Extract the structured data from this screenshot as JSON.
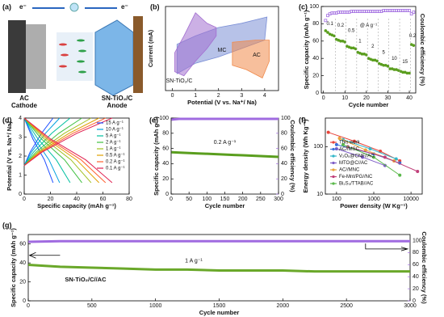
{
  "schematic": {
    "label": "(a)",
    "electron_left": "e⁻",
    "electron_right": "e⁻",
    "cathode_name": "AC",
    "cathode_role": "Cathode",
    "anode_name": "SN-TiO₂/C",
    "anode_role": "Anode"
  },
  "chart_data": [
    {
      "label": "(b)",
      "type": "area",
      "xlabel": "Potential (V vs. Na⁺/ Na)",
      "ylabel": "Current (mA)",
      "xlim": [
        -0.3,
        4.6
      ],
      "ylim": [
        -1,
        1
      ],
      "xticks": [
        0,
        1,
        2,
        3,
        4
      ],
      "series": [
        {
          "name": "MC",
          "color": "#7b8fd6",
          "x": [
            0.2,
            1,
            2,
            3,
            4,
            4.1,
            3,
            2,
            1,
            0.2
          ],
          "values": [
            -0.6,
            -0.35,
            -0.2,
            0,
            0.2,
            0.75,
            0.6,
            0.5,
            0.3,
            0.1
          ]
        },
        {
          "name": "SN-TiO₂/C",
          "color": "#a36fd0",
          "x": [
            0.1,
            0.5,
            1.0,
            1.5,
            1.9,
            1.9,
            1.5,
            1.0,
            0.5,
            0.1
          ],
          "values": [
            -0.55,
            -0.65,
            -0.3,
            0.0,
            0.3,
            0.5,
            0.6,
            0.85,
            0.3,
            -0.1
          ]
        },
        {
          "name": "AC",
          "color": "#f08a4b",
          "x": [
            2.6,
            3.2,
            3.9,
            4.2,
            4.2,
            3.6,
            2.6
          ],
          "values": [
            -0.4,
            -0.5,
            -0.7,
            -0.3,
            0.2,
            0.2,
            0.15
          ]
        }
      ]
    },
    {
      "label": "(c)",
      "type": "scatter",
      "xlabel": "Cycle number",
      "ylabel": "Specific capacity (mAh g⁻¹)",
      "y2label": "Coulombic efficiency (%)",
      "xlim": [
        -1,
        43
      ],
      "xticks": [
        0,
        10,
        20,
        30,
        40
      ],
      "ylim": [
        0,
        100
      ],
      "yticks": [
        0,
        20,
        40,
        60,
        80,
        100
      ],
      "y2lim": [
        0,
        105
      ],
      "annotations": [
        "0.1",
        "0.2",
        "0.5",
        "@ A g⁻¹",
        "1",
        "2",
        "5",
        "10",
        "15",
        "0.2"
      ],
      "x": [
        1,
        2,
        3,
        4,
        5,
        6,
        7,
        8,
        9,
        10,
        11,
        12,
        13,
        14,
        15,
        16,
        17,
        18,
        19,
        20,
        21,
        22,
        23,
        24,
        25,
        26,
        27,
        28,
        29,
        30,
        31,
        32,
        33,
        34,
        35,
        36,
        37,
        38,
        39,
        40,
        41,
        42
      ],
      "series": [
        {
          "color": "#5a9e1e",
          "values": [
            72,
            70,
            68,
            67,
            66,
            62,
            61,
            60,
            60,
            59,
            54,
            53,
            52,
            52,
            51,
            47,
            46,
            45,
            45,
            44,
            40,
            39,
            38,
            38,
            37,
            34,
            33,
            32,
            32,
            31,
            28,
            28,
            27,
            27,
            26,
            25,
            24,
            24,
            23,
            23,
            56,
            55
          ]
        },
        {
          "color": "#a06be0",
          "axis": "y2",
          "values": [
            88,
            94,
            96,
            97,
            97,
            97,
            98,
            98,
            98,
            98,
            98,
            98,
            99,
            99,
            99,
            99,
            99,
            99,
            99,
            99,
            99,
            99,
            99,
            99,
            99,
            99,
            99,
            100,
            100,
            100,
            100,
            100,
            100,
            100,
            100,
            100,
            100,
            100,
            100,
            100,
            96,
            98
          ]
        }
      ]
    },
    {
      "label": "(d)",
      "type": "line",
      "xlabel": "Specific capacity (mAh g⁻¹)",
      "ylabel": "Potential (V vs. Na⁺/ Na)",
      "xlim": [
        0,
        80
      ],
      "xticks": [
        0,
        20,
        40,
        60,
        80
      ],
      "ylim": [
        0,
        4
      ],
      "yticks": [
        0,
        1,
        2,
        3,
        4
      ],
      "series": [
        {
          "name": "15 A g⁻¹",
          "color": "#1f4fff",
          "x": [
            0,
            4.4,
            13.2,
            22,
            0,
            0,
            6.6,
            15.4,
            22
          ],
          "values": [
            1.5,
            2.2,
            3.2,
            4.0,
            null,
            4.0,
            2.9,
            1.8,
            0.6
          ]
        },
        {
          "name": "10 A g⁻¹",
          "color": "#00a0e0",
          "x": [
            0,
            5.4,
            16.2,
            27,
            0,
            0,
            8.1,
            18.9,
            27
          ],
          "values": [
            1.5,
            2.2,
            3.2,
            4.0,
            null,
            4.0,
            2.9,
            1.8,
            0.6
          ]
        },
        {
          "name": "5 A g⁻¹",
          "color": "#00c0a0",
          "x": [
            0,
            7,
            21,
            35,
            0,
            0,
            10.5,
            24.5,
            35
          ],
          "values": [
            1.5,
            2.2,
            3.2,
            4.0,
            null,
            4.0,
            2.9,
            1.8,
            0.6
          ]
        },
        {
          "name": "2 A g⁻¹",
          "color": "#40c040",
          "x": [
            0,
            8.8,
            26.4,
            44,
            0,
            0,
            13.2,
            30.8,
            44
          ],
          "values": [
            1.5,
            2.2,
            3.2,
            4.0,
            null,
            4.0,
            2.9,
            1.8,
            0.6
          ]
        },
        {
          "name": "1 A g⁻¹",
          "color": "#a0c020",
          "x": [
            0,
            10.2,
            30.6,
            51,
            0,
            0,
            15.3,
            35.7,
            51
          ],
          "values": [
            1.5,
            2.2,
            3.2,
            4.0,
            null,
            4.0,
            2.9,
            1.8,
            0.6
          ]
        },
        {
          "name": "0.5 A g⁻¹",
          "color": "#e0a000",
          "x": [
            0,
            11.4,
            34.2,
            57,
            0,
            0,
            17.1,
            39.9,
            57
          ],
          "values": [
            1.5,
            2.2,
            3.2,
            4.0,
            null,
            4.0,
            2.9,
            1.8,
            0.6
          ]
        },
        {
          "name": "0.2 A g⁻¹",
          "color": "#ff6030",
          "x": [
            0,
            12.4,
            37.2,
            62,
            0,
            0,
            18.6,
            43.4,
            62
          ],
          "values": [
            1.5,
            2.2,
            3.2,
            4.0,
            null,
            4.0,
            2.9,
            1.8,
            0.6
          ]
        },
        {
          "name": "0.1 A g⁻¹",
          "color": "#e02050",
          "x": [
            0,
            13.4,
            40.2,
            67,
            0,
            0,
            20.1,
            46.9,
            67
          ],
          "values": [
            1.5,
            2.2,
            3.2,
            4.0,
            null,
            4.0,
            2.9,
            1.8,
            0.6
          ]
        }
      ]
    },
    {
      "label": "(e)",
      "type": "line",
      "xlabel": "Cycle number",
      "ylabel": "Specific capacity (mAh g⁻¹)",
      "y2label": "Coulombic efficiency (%)",
      "xlim": [
        0,
        300
      ],
      "xticks": [
        0,
        50,
        100,
        150,
        200,
        250,
        300
      ],
      "ylim": [
        0,
        100
      ],
      "yticks": [
        0,
        20,
        40,
        60,
        80,
        100
      ],
      "y2lim": [
        0,
        100
      ],
      "y2ticks": [
        0,
        20,
        40,
        60,
        80,
        100
      ],
      "annotations": [
        "0.2 A g⁻¹"
      ],
      "x": [
        1,
        25,
        50,
        75,
        100,
        125,
        150,
        175,
        200,
        225,
        250,
        275,
        300
      ],
      "series": [
        {
          "color": "#5a9e1e",
          "values": [
            55,
            54.5,
            54,
            53.5,
            53,
            52.5,
            52,
            51.5,
            51,
            50.5,
            50,
            49.5,
            49
          ]
        },
        {
          "color": "#a06be0",
          "axis": "y2",
          "values": [
            98,
            99,
            99,
            99,
            99,
            99,
            99,
            99,
            99,
            99,
            99,
            99,
            99
          ]
        }
      ]
    },
    {
      "label": "(f)",
      "type": "line",
      "markers": true,
      "log": true,
      "xlabel": "Power density (W Kg⁻¹)",
      "ylabel": "Energy density (Wh Kg⁻¹)",
      "xlim": [
        50,
        20000
      ],
      "xticks": [
        100,
        1000,
        10000
      ],
      "ylim": [
        10,
        400
      ],
      "yticks": [
        10,
        100
      ],
      "series": [
        {
          "name": "This work",
          "color": "#e8443a",
          "x": [
            60,
            300,
            1500,
            5000
          ],
          "values": [
            200,
            130,
            80,
            50
          ]
        },
        {
          "name": "AC//MSC",
          "color": "#3a6fd8",
          "x": [
            100,
            1000,
            5000
          ],
          "values": [
            110,
            70,
            45
          ]
        },
        {
          "name": "V₂O₅@CNF//AC",
          "color": "#33b6c9",
          "x": [
            150,
            800,
            4000
          ],
          "values": [
            140,
            90,
            55
          ]
        },
        {
          "name": "MTO@C//AC",
          "color": "#7d5cc6",
          "x": [
            100,
            500,
            2000
          ],
          "values": [
            90,
            60,
            40
          ]
        },
        {
          "name": "AC//MNC",
          "color": "#e8a33a",
          "x": [
            120,
            600,
            3500
          ],
          "values": [
            150,
            85,
            50
          ]
        },
        {
          "name": "Fe-Mnt/PG//NC",
          "color": "#c0407a",
          "x": [
            200,
            2000,
            15000
          ],
          "values": [
            100,
            60,
            30
          ]
        },
        {
          "name": "Bi₂S₃/TTAB//AC",
          "color": "#5ab84a",
          "x": [
            150,
            1000,
            5000
          ],
          "values": [
            110,
            60,
            25
          ]
        }
      ]
    },
    {
      "label": "(g)",
      "type": "line",
      "xlabel": "Cycle number",
      "ylabel": "Specific capacity (mAh g⁻¹)",
      "y2label": "Coulombic efficiency (%)",
      "xlim": [
        0,
        3000
      ],
      "xticks": [
        0,
        500,
        1000,
        1500,
        2000,
        2500,
        3000
      ],
      "ylim": [
        0,
        70
      ],
      "yticks": [
        0,
        20,
        40,
        60
      ],
      "y2lim": [
        0,
        110
      ],
      "y2ticks": [
        0,
        20,
        40,
        60,
        80,
        100
      ],
      "annotations": [
        "1 A g⁻¹",
        "SN-TiO₂/C//AC"
      ],
      "x": [
        1,
        250,
        500,
        750,
        1000,
        1250,
        1500,
        1750,
        2000,
        2250,
        2500,
        2750,
        3000
      ],
      "series": [
        {
          "color": "#6aa82a",
          "values": [
            38,
            36,
            35,
            34,
            33,
            33,
            32,
            32,
            32,
            31,
            31,
            31,
            31
          ]
        },
        {
          "color": "#a06be0",
          "axis": "y2",
          "values": [
            98,
            99,
            99,
            99,
            99,
            99,
            99,
            99,
            99,
            99,
            99,
            99,
            99
          ]
        }
      ]
    }
  ]
}
